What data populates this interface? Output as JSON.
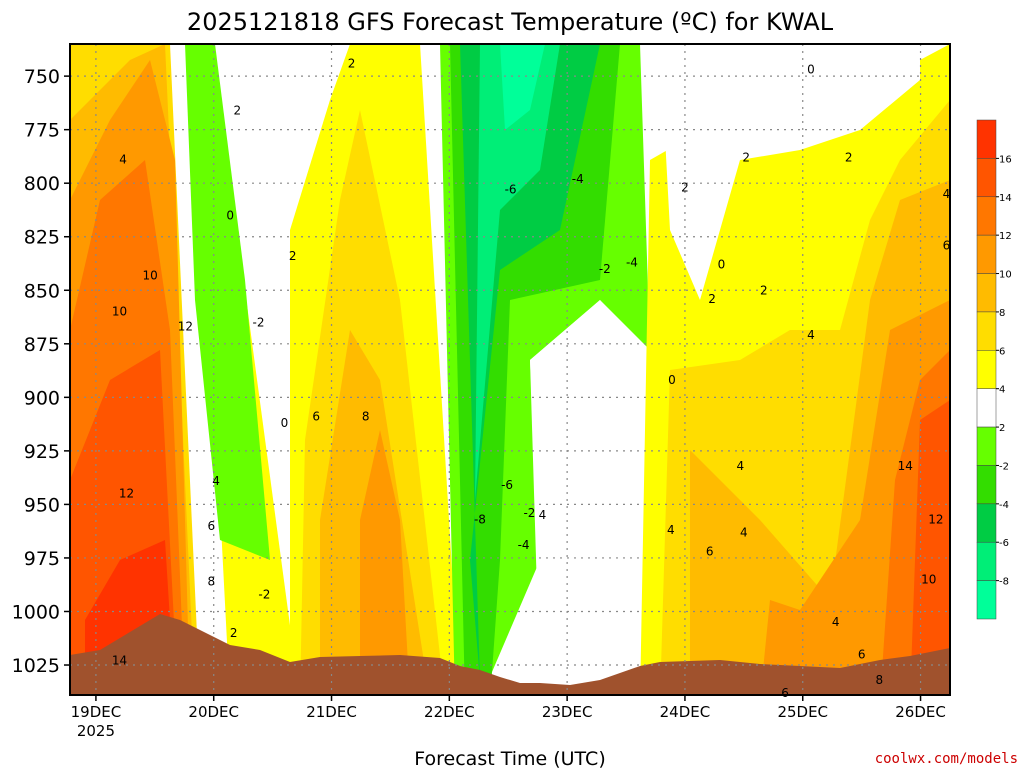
{
  "chart_data": {
    "type": "heatmap",
    "title": "2025121818 GFS Forecast Temperature (ºC) for KWAL",
    "xlabel": "Forecast Time (UTC)",
    "ylabel": "",
    "y_ticks": [
      "750",
      "775",
      "800",
      "825",
      "850",
      "875",
      "900",
      "925",
      "950",
      "975",
      "1000",
      "1025"
    ],
    "y_values": [
      750,
      775,
      800,
      825,
      850,
      875,
      900,
      925,
      950,
      975,
      1000,
      1025
    ],
    "ylim": [
      1039,
      735
    ],
    "x_ticks": [
      "19DEC",
      "20DEC",
      "21DEC",
      "22DEC",
      "23DEC",
      "24DEC",
      "25DEC",
      "26DEC"
    ],
    "x_values": [
      0,
      1,
      2,
      3,
      4,
      5,
      6,
      7
    ],
    "xlim": [
      -0.22,
      7.25
    ],
    "x_year_label": "2025",
    "legend_levels": [
      "-8",
      "-6",
      "-4",
      "-2",
      "2",
      "4",
      "6",
      "8",
      "10",
      "12",
      "14",
      "16"
    ],
    "legend_colors": [
      "#00ff99",
      "#00ee77",
      "#00cc44",
      "#33dd00",
      "#66ff00",
      "#ffffff",
      "#ffff00",
      "#ffdd00",
      "#ffbb00",
      "#ff9900",
      "#ff7700",
      "#ff5500",
      "#ff3300"
    ],
    "contour_labels": [
      {
        "text": "2",
        "x": 2.17,
        "y": 744
      },
      {
        "text": "0",
        "x": 6.07,
        "y": 747
      },
      {
        "text": "2",
        "x": 1.2,
        "y": 766
      },
      {
        "text": "4",
        "x": 0.23,
        "y": 789
      },
      {
        "text": "2",
        "x": 6.39,
        "y": 788
      },
      {
        "text": "2",
        "x": 5.52,
        "y": 788
      },
      {
        "text": "-4",
        "x": 4.09,
        "y": 798
      },
      {
        "text": "-6",
        "x": 3.52,
        "y": 803
      },
      {
        "text": "2",
        "x": 5.0,
        "y": 802
      },
      {
        "text": "4",
        "x": 7.22,
        "y": 805
      },
      {
        "text": "0",
        "x": 1.14,
        "y": 815
      },
      {
        "text": "6",
        "x": 7.22,
        "y": 829
      },
      {
        "text": "2",
        "x": 1.67,
        "y": 834
      },
      {
        "text": "0",
        "x": 5.31,
        "y": 838
      },
      {
        "text": "-2",
        "x": 4.32,
        "y": 840
      },
      {
        "text": "-4",
        "x": 4.55,
        "y": 837
      },
      {
        "text": "10",
        "x": 0.46,
        "y": 843
      },
      {
        "text": "2",
        "x": 5.67,
        "y": 850
      },
      {
        "text": "2",
        "x": 5.23,
        "y": 854
      },
      {
        "text": "10",
        "x": 0.2,
        "y": 860
      },
      {
        "text": "-2",
        "x": 1.38,
        "y": 865
      },
      {
        "text": "12",
        "x": 0.76,
        "y": 867
      },
      {
        "text": "4",
        "x": 6.07,
        "y": 871
      },
      {
        "text": "0",
        "x": 4.89,
        "y": 892
      },
      {
        "text": "6",
        "x": 1.87,
        "y": 909
      },
      {
        "text": "8",
        "x": 2.29,
        "y": 909
      },
      {
        "text": "0",
        "x": 1.6,
        "y": 912
      },
      {
        "text": "4",
        "x": 5.47,
        "y": 932
      },
      {
        "text": "14",
        "x": 6.87,
        "y": 932
      },
      {
        "text": "4",
        "x": 1.02,
        "y": 939
      },
      {
        "text": "-6",
        "x": 3.49,
        "y": 941
      },
      {
        "text": "12",
        "x": 0.26,
        "y": 945
      },
      {
        "text": "-2",
        "x": 3.68,
        "y": 954
      },
      {
        "text": "-8",
        "x": 3.26,
        "y": 957
      },
      {
        "text": "6",
        "x": 0.98,
        "y": 960
      },
      {
        "text": "12",
        "x": 7.13,
        "y": 957
      },
      {
        "text": "-4",
        "x": 3.63,
        "y": 969
      },
      {
        "text": "4",
        "x": 5.5,
        "y": 963
      },
      {
        "text": "4",
        "x": 3.79,
        "y": 955
      },
      {
        "text": "4",
        "x": 4.88,
        "y": 962
      },
      {
        "text": "6",
        "x": 5.21,
        "y": 972
      },
      {
        "text": "10",
        "x": 7.07,
        "y": 985
      },
      {
        "text": "8",
        "x": 0.98,
        "y": 986
      },
      {
        "text": "-2",
        "x": 1.43,
        "y": 992
      },
      {
        "text": "4",
        "x": 6.28,
        "y": 1005
      },
      {
        "text": "2",
        "x": 1.17,
        "y": 1010
      },
      {
        "text": "6",
        "x": 6.5,
        "y": 1020
      },
      {
        "text": "14",
        "x": 0.2,
        "y": 1023
      },
      {
        "text": "8",
        "x": 6.65,
        "y": 1032
      },
      {
        "text": "6",
        "x": 5.85,
        "y": 1038
      }
    ]
  },
  "credit": "coolwx.com/models"
}
